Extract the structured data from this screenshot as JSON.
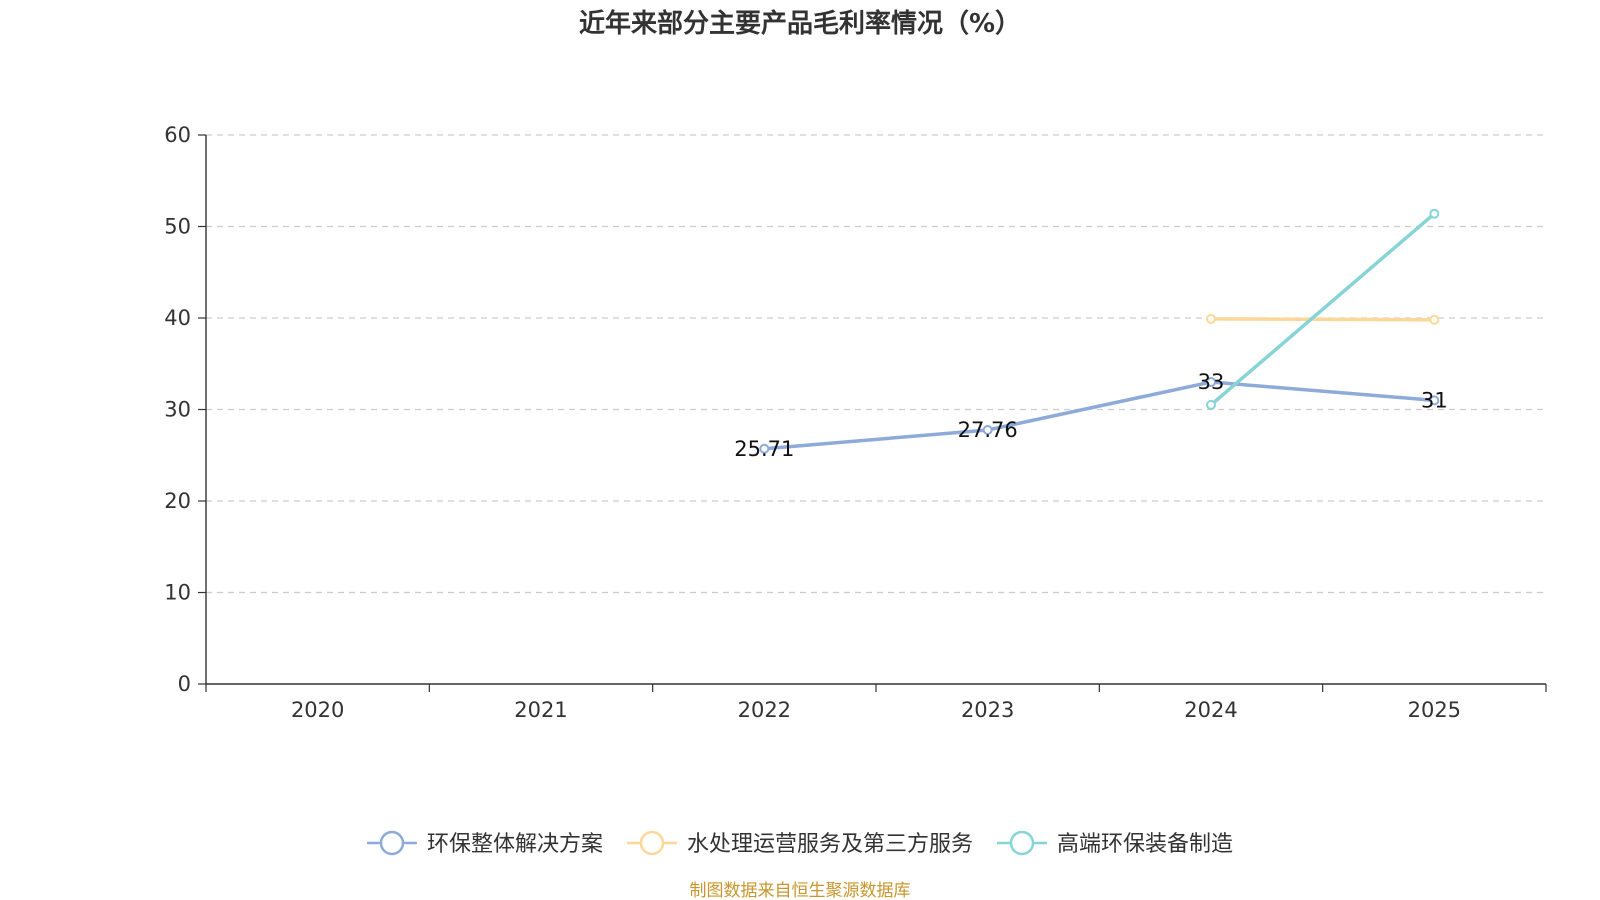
{
  "chart_data": {
    "type": "line",
    "title": "近年来部分主要产品毛利率情况（%）",
    "categories": [
      "2020",
      "2021",
      "2022",
      "2023",
      "2024",
      "2025"
    ],
    "ylim": [
      0,
      60
    ],
    "yticks": [
      0,
      10,
      20,
      30,
      40,
      50,
      60
    ],
    "grid": true,
    "legend_position": "bottom",
    "series": [
      {
        "name": "环保整体解决方案",
        "color": "#8eaad8",
        "values": [
          null,
          null,
          25.71,
          27.76,
          33,
          31
        ],
        "labels": [
          null,
          null,
          "25.71",
          "27.76",
          "33",
          "31"
        ]
      },
      {
        "name": "水处理运营服务及第三方服务",
        "color": "#fbd897",
        "values": [
          null,
          null,
          null,
          null,
          39.9,
          39.8
        ],
        "labels": [
          null,
          null,
          null,
          null,
          null,
          null
        ]
      },
      {
        "name": "高端环保装备制造",
        "color": "#86d4d6",
        "values": [
          null,
          null,
          null,
          null,
          30.5,
          51.4
        ],
        "labels": [
          null,
          null,
          null,
          null,
          null,
          null
        ]
      }
    ]
  },
  "source": "制图数据来自恒生聚源数据库"
}
